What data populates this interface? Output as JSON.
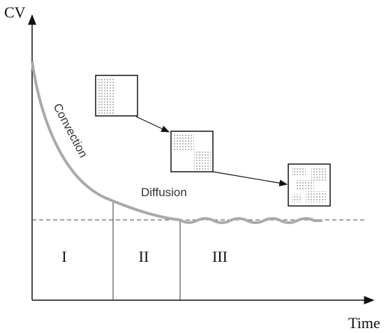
{
  "axes": {
    "y_label": "CV",
    "x_label": "Time"
  },
  "annotations": {
    "convection": "Convection",
    "diffusion": "Diffusion"
  },
  "regions": [
    "I",
    "II",
    "III"
  ]
}
